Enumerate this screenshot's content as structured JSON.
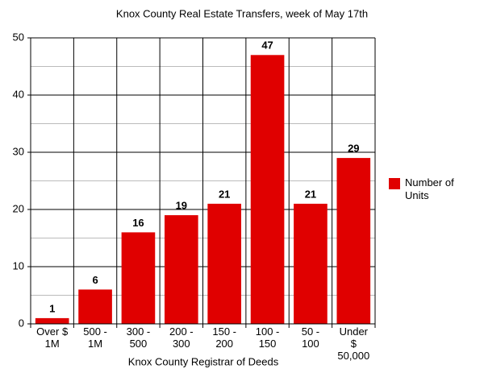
{
  "chart_data": {
    "type": "bar",
    "title": "Knox County Real Estate Transfers, week of May 17th",
    "x_label": "Knox County Registrar of Deeds",
    "categories": [
      "Over $ 1M",
      "500 - 1M",
      "300 - 500",
      "200 - 300",
      "150 - 200",
      "100 - 150",
      "50 - 100",
      "Under $ 50,000"
    ],
    "series": [
      {
        "name": "Number of Units",
        "color": "#e00000",
        "values": [
          1,
          6,
          16,
          19,
          21,
          47,
          21,
          29
        ]
      }
    ],
    "ylim": [
      0,
      50
    ],
    "yticks": [
      0,
      10,
      20,
      30,
      40,
      50
    ],
    "grid": true,
    "legend": "right"
  }
}
